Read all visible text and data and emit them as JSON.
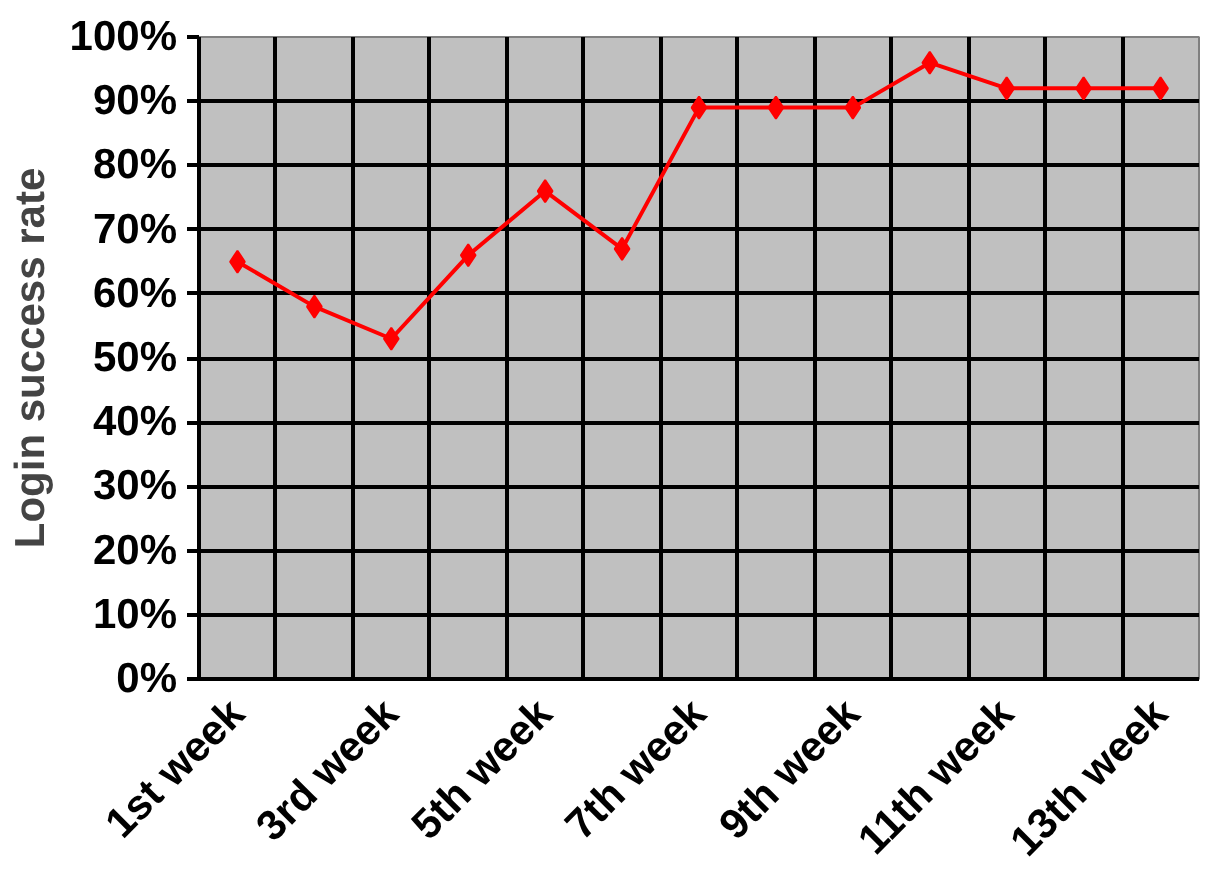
{
  "chart_data": {
    "type": "line",
    "ylabel": "Login success rate",
    "categories": [
      "1st week",
      null,
      "3rd week",
      null,
      "5th week",
      null,
      "7th week",
      null,
      "9th week",
      null,
      "11th week",
      null,
      "13th week"
    ],
    "series": [
      {
        "color": "#ff0000",
        "values": [
          65,
          58,
          53,
          66,
          76,
          67,
          89,
          89,
          89,
          96,
          92,
          92,
          92
        ]
      }
    ],
    "ylim": [
      0,
      100
    ],
    "yticks": [
      {
        "value": 0,
        "label": "0%"
      },
      {
        "value": 10,
        "label": "10%"
      },
      {
        "value": 20,
        "label": "20%"
      },
      {
        "value": 30,
        "label": "30%"
      },
      {
        "value": 40,
        "label": "40%"
      },
      {
        "value": 50,
        "label": "50%"
      },
      {
        "value": 60,
        "label": "60%"
      },
      {
        "value": 70,
        "label": "70%"
      },
      {
        "value": 80,
        "label": "80%"
      },
      {
        "value": 90,
        "label": "90%"
      },
      {
        "value": 100,
        "label": "100%"
      }
    ],
    "grid": true,
    "marker": "diamond",
    "line_style": "solid"
  }
}
